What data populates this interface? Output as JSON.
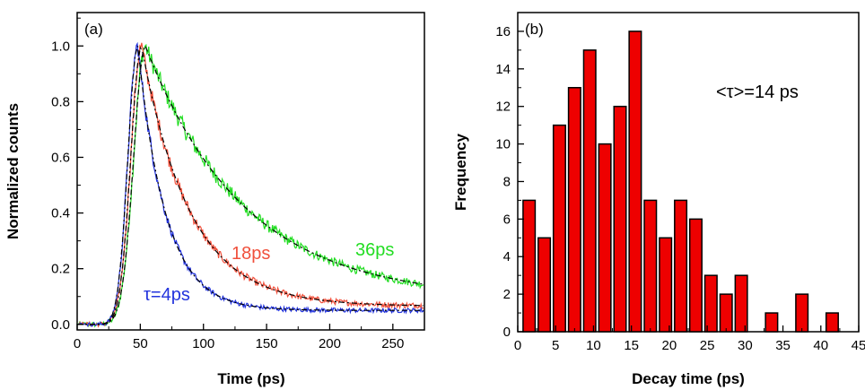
{
  "chart_data": [
    {
      "type": "line",
      "panel_label": "(a)",
      "xlabel": "Time (ps)",
      "ylabel": "Normalized counts",
      "xlim": [
        0,
        275
      ],
      "ylim": [
        -0.02,
        1.12
      ],
      "xticks": [
        "0",
        "50",
        "100",
        "150",
        "200",
        "250"
      ],
      "yticks": [
        "0.0",
        "0.2",
        "0.4",
        "0.6",
        "0.8",
        "1.0"
      ],
      "grid": false,
      "series": [
        {
          "name": "τ=4ps",
          "color": "#2233dd",
          "peak_x": 48,
          "decay_ps": 4,
          "values_desc": "rise from ~15 ps, peak 1.0 at ~48 ps, fast decay to ~0.05"
        },
        {
          "name": "18ps",
          "color": "#f0503c",
          "peak_x": 51,
          "decay_ps": 18,
          "values_desc": "peak 1.0 at ~51 ps, decays to ~0.07 at 275 ps"
        },
        {
          "name": "36ps",
          "color": "#22dd22",
          "peak_x": 54,
          "decay_ps": 36,
          "values_desc": "peak ~1.0 at ~54 ps, decays to ~0.12 at 275 ps"
        }
      ],
      "fits": "black dash-dot fit curves over each trace"
    },
    {
      "type": "bar",
      "panel_label": "(b)",
      "xlabel": "Decay time (ps)",
      "ylabel": "Frequency",
      "annotation": "<τ>=14 ps",
      "xlim": [
        0,
        45
      ],
      "ylim": [
        0,
        17
      ],
      "xticks": [
        "0",
        "5",
        "10",
        "15",
        "20",
        "25",
        "30",
        "35",
        "40",
        "45"
      ],
      "yticks": [
        "0",
        "2",
        "4",
        "6",
        "8",
        "10",
        "12",
        "14",
        "16"
      ],
      "bar_color": "#ee0000",
      "bin_centers": [
        1.5,
        3.5,
        5.5,
        7.5,
        9.5,
        11.5,
        13.5,
        15.5,
        17.5,
        19.5,
        21.5,
        23.5,
        25.5,
        27.5,
        29.5,
        33.5,
        37.5,
        41.5
      ],
      "values": [
        7,
        5,
        11,
        13,
        15,
        10,
        12,
        16,
        7,
        5,
        7,
        6,
        3,
        2,
        3,
        1,
        2,
        1
      ]
    }
  ]
}
